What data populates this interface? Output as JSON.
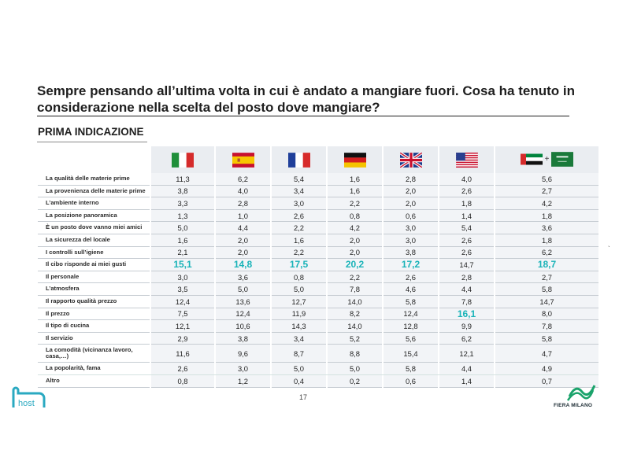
{
  "slide": {
    "title": "Sempre pensando all’ultima volta in cui è andato a mangiare fuori. Cosa ha tenuto in considerazione nella scelta del posto dove mangiare?",
    "subtitle": "PRIMA INDICAZIONE",
    "page_number": "17",
    "plus": "+",
    "tick_mark": "`"
  },
  "logos": {
    "host": "host",
    "fiera": "FIERA MILANO"
  },
  "colors": {
    "highlight": "#19b3b8",
    "cell_bg": "#f2f4f7",
    "header_bg": "#eaedf1"
  },
  "columns": [
    {
      "flag": "italy-flag"
    },
    {
      "flag": "spain-flag"
    },
    {
      "flag": "france-flag"
    },
    {
      "flag": "germany-flag"
    },
    {
      "flag": "uk-flag"
    },
    {
      "flag": "usa-flag"
    },
    {
      "flag": "uae-flag + saudi-arabia-flag"
    }
  ],
  "rows": [
    {
      "label": "La qualità delle materie prime",
      "values": [
        "11,3",
        "6,2",
        "5,4",
        "1,6",
        "2,8",
        "4,0",
        "5,6"
      ]
    },
    {
      "label": "La provenienza delle materie prime",
      "values": [
        "3,8",
        "4,0",
        "3,4",
        "1,6",
        "2,0",
        "2,6",
        "2,7"
      ]
    },
    {
      "label": "L’ambiente interno",
      "values": [
        "3,3",
        "2,8",
        "3,0",
        "2,2",
        "2,0",
        "1,8",
        "4,2"
      ]
    },
    {
      "label": "La posizione panoramica",
      "values": [
        "1,3",
        "1,0",
        "2,6",
        "0,8",
        "0,6",
        "1,4",
        "1,8"
      ]
    },
    {
      "label": "È un posto dove vanno miei amici",
      "values": [
        "5,0",
        "4,4",
        "2,2",
        "4,2",
        "3,0",
        "5,4",
        "3,6"
      ]
    },
    {
      "label": "La sicurezza del locale",
      "values": [
        "1,6",
        "2,0",
        "1,6",
        "2,0",
        "3,0",
        "2,6",
        "1,8"
      ]
    },
    {
      "label": "I controlli sull’igiene",
      "values": [
        "2,1",
        "2,0",
        "2,2",
        "2,0",
        "3,8",
        "2,6",
        "6,2"
      ]
    },
    {
      "label": "Il cibo risponde ai miei gusti",
      "values": [
        "15,1",
        "14,8",
        "17,5",
        "20,2",
        "17,2",
        "14,7",
        "18,7"
      ]
    },
    {
      "label": "Il personale",
      "values": [
        "3,0",
        "3,6",
        "0,8",
        "2,2",
        "2,6",
        "2,8",
        "2,7"
      ]
    },
    {
      "label": "L’atmosfera",
      "values": [
        "3,5",
        "5,0",
        "5,0",
        "7,8",
        "4,6",
        "4,4",
        "5,8"
      ]
    },
    {
      "label": "Il rapporto qualità prezzo",
      "values": [
        "12,4",
        "13,6",
        "12,7",
        "14,0",
        "5,8",
        "7,8",
        "14,7"
      ]
    },
    {
      "label": "Il prezzo",
      "values": [
        "7,5",
        "12,4",
        "11,9",
        "8,2",
        "12,4",
        "16,1",
        "8,0"
      ]
    },
    {
      "label": "Il tipo di cucina",
      "values": [
        "12,1",
        "10,6",
        "14,3",
        "14,0",
        "12,8",
        "9,9",
        "7,8"
      ]
    },
    {
      "label": "Il servizio",
      "values": [
        "2,9",
        "3,8",
        "3,4",
        "5,2",
        "5,6",
        "6,2",
        "5,8"
      ]
    },
    {
      "label": "La comodità (vicinanza lavoro, casa,…)",
      "values": [
        "11,6",
        "9,6",
        "8,7",
        "8,8",
        "15,4",
        "12,1",
        "4,7"
      ]
    },
    {
      "label": "La popolarità, fama",
      "values": [
        "2,6",
        "3,0",
        "5,0",
        "5,0",
        "5,8",
        "4,4",
        "4,9"
      ]
    },
    {
      "label": "Altro",
      "values": [
        "0,8",
        "1,2",
        "0,4",
        "0,2",
        "0,6",
        "1,4",
        "0,7"
      ]
    }
  ],
  "highlighted": [
    {
      "row": 7,
      "cols": [
        0,
        1,
        2,
        3,
        4,
        6
      ]
    },
    {
      "row": 11,
      "cols": [
        5
      ]
    }
  ]
}
